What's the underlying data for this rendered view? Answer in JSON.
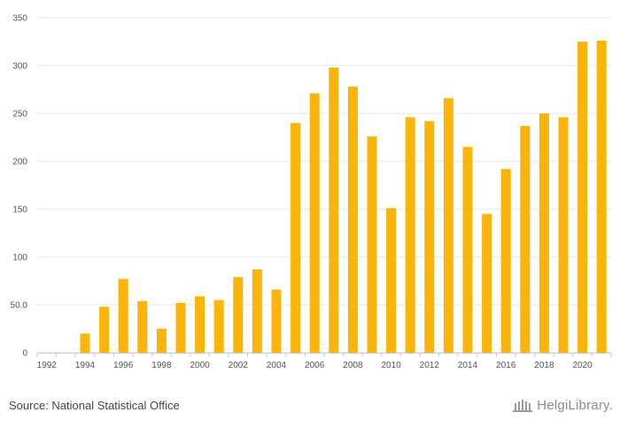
{
  "chart_data": {
    "type": "bar",
    "categories": [
      "1992",
      "1993",
      "1994",
      "1995",
      "1996",
      "1997",
      "1998",
      "1999",
      "2000",
      "2001",
      "2002",
      "2003",
      "2004",
      "2005",
      "2006",
      "2007",
      "2008",
      "2009",
      "2010",
      "2011",
      "2012",
      "2013",
      "2014",
      "2015",
      "2016",
      "2017",
      "2018",
      "2019",
      "2020",
      "2021"
    ],
    "values": [
      0,
      0,
      20,
      48,
      77,
      54,
      25,
      52,
      59,
      55,
      79,
      87,
      66,
      240,
      271,
      298,
      278,
      226,
      151,
      246,
      242,
      266,
      215,
      145,
      192,
      237,
      250,
      246,
      325,
      326
    ],
    "x_tick_labels": [
      "1992",
      "1994",
      "1996",
      "1998",
      "2000",
      "2002",
      "2004",
      "2006",
      "2008",
      "2010",
      "2012",
      "2014",
      "2016",
      "2018",
      "2020"
    ],
    "y_tick_labels": [
      "0",
      "50.0",
      "100",
      "150",
      "200",
      "250",
      "300",
      "350"
    ],
    "y_ticks": [
      0,
      50,
      100,
      150,
      200,
      250,
      300,
      350
    ],
    "ylim": [
      0,
      350
    ],
    "title": "",
    "xlabel": "",
    "ylabel": "",
    "grid": true,
    "bar_color": "#FBB40A",
    "grid_color": "#e6e6e6"
  },
  "footer": {
    "source": "Source: National Statistical Office",
    "logo_text": "HelgiLibrary",
    "logo_dot": "."
  }
}
